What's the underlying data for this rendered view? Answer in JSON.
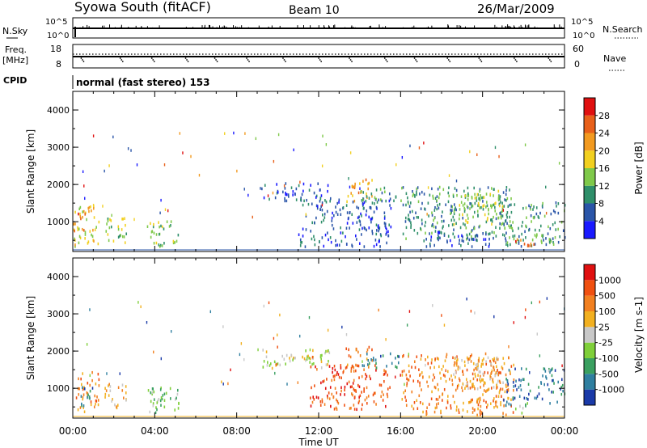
{
  "header": {
    "station": "Syowa South (fitACF)",
    "beam": "Beam 10",
    "date": "26/Mar/2009"
  },
  "panels": {
    "nsky": {
      "left_label": "N.Sky",
      "right_label": "N.Search",
      "ytick_top": "10^5",
      "ytick_bottom": "10^0",
      "rtick_top": "10^5",
      "rtick_bottom": "10^0"
    },
    "freq": {
      "left_label_1": "Freq.",
      "left_label_2": "[MHz]",
      "right_label": "Nave",
      "ytick_top": "18",
      "ytick_bottom": "8",
      "rtick_top": "60",
      "rtick_bottom": "0"
    },
    "cpid": {
      "label": "CPID",
      "mode": "normal (fast stereo) 153"
    }
  },
  "chart_data": [
    {
      "type": "heatmap",
      "name": "power",
      "ylabel": "Slant Range [km]",
      "xlabel": "Time UT",
      "x_ticks": [
        "00:00",
        "04:00",
        "08:00",
        "12:00",
        "16:00",
        "20:00",
        "00:00"
      ],
      "y_ticks": [
        "1000",
        "2000",
        "3000",
        "4000"
      ],
      "ylim": [
        200,
        4500
      ],
      "xlim_hours": [
        0,
        24
      ],
      "colorbar": {
        "label": "Power [dB]",
        "ticks": [
          "4",
          "8",
          "12",
          "16",
          "20",
          "24",
          "28"
        ],
        "colors": [
          "#1a1aff",
          "#2a55a8",
          "#2f8f6a",
          "#7fc94a",
          "#f2d020",
          "#f29a20",
          "#e8601a",
          "#e01010"
        ]
      },
      "blobs": [
        {
          "t0": 0.0,
          "t1": 1.3,
          "r0": 300,
          "r1": 1400,
          "level": 4
        },
        {
          "t0": 0.0,
          "t1": 0.8,
          "r0": 700,
          "r1": 1200,
          "level": 6
        },
        {
          "t0": 1.5,
          "t1": 2.6,
          "r0": 400,
          "r1": 1100,
          "level": 3
        },
        {
          "t0": 3.6,
          "t1": 5.2,
          "r0": 300,
          "r1": 1000,
          "level": 3
        },
        {
          "t0": 9.2,
          "t1": 12.5,
          "r0": 1500,
          "r1": 2000,
          "level": 1
        },
        {
          "t0": 11.0,
          "t1": 15.5,
          "r0": 300,
          "r1": 1600,
          "level": 1
        },
        {
          "t0": 13.3,
          "t1": 14.6,
          "r0": 1500,
          "r1": 2100,
          "level": 5
        },
        {
          "t0": 14.0,
          "t1": 16.0,
          "r0": 1500,
          "r1": 1900,
          "level": 2
        },
        {
          "t0": 16.0,
          "t1": 21.5,
          "r0": 500,
          "r1": 1900,
          "level": 2
        },
        {
          "t0": 18.5,
          "t1": 21.0,
          "r0": 900,
          "r1": 1800,
          "level": 3
        },
        {
          "t0": 17.0,
          "t1": 20.5,
          "r0": 300,
          "r1": 700,
          "level": 1
        },
        {
          "t0": 21.0,
          "t1": 24.0,
          "r0": 300,
          "r1": 1500,
          "level": 2
        },
        {
          "t0": 21.5,
          "t1": 22.5,
          "r0": 300,
          "r1": 500,
          "level": 6
        }
      ]
    },
    {
      "type": "heatmap",
      "name": "velocity",
      "ylabel": "Slant Range [km]",
      "xlabel": "Time UT",
      "x_ticks": [
        "00:00",
        "04:00",
        "08:00",
        "12:00",
        "16:00",
        "20:00",
        "00:00"
      ],
      "y_ticks": [
        "1000",
        "2000",
        "3000",
        "4000"
      ],
      "ylim": [
        200,
        4500
      ],
      "xlim_hours": [
        0,
        24
      ],
      "colorbar": {
        "label": "Velocity [m s-1]",
        "ticks": [
          "1000",
          "500",
          "100",
          "25",
          "-25",
          "-100",
          "-500",
          "-1000"
        ],
        "colors": [
          "#1a3aa8",
          "#2f7fa0",
          "#3aa060",
          "#7fcf3a",
          "#c8c8c8",
          "#f2b020",
          "#f28020",
          "#f05010",
          "#e01010"
        ]
      },
      "blobs": [
        {
          "t0": 0.0,
          "t1": 1.3,
          "r0": 300,
          "r1": 1400,
          "level": 6
        },
        {
          "t0": 0.2,
          "t1": 1.0,
          "r0": 500,
          "r1": 1000,
          "level": 1
        },
        {
          "t0": 1.5,
          "t1": 2.6,
          "r0": 400,
          "r1": 1100,
          "level": 5
        },
        {
          "t0": 3.6,
          "t1": 5.2,
          "r0": 300,
          "r1": 1000,
          "level": 3
        },
        {
          "t0": 9.2,
          "t1": 12.5,
          "r0": 1500,
          "r1": 2000,
          "level": 4
        },
        {
          "t0": 11.5,
          "t1": 15.5,
          "r0": 400,
          "r1": 1600,
          "level": 7
        },
        {
          "t0": 13.3,
          "t1": 14.6,
          "r0": 1500,
          "r1": 2100,
          "level": 6
        },
        {
          "t0": 14.0,
          "t1": 16.0,
          "r0": 1500,
          "r1": 1900,
          "level": 1
        },
        {
          "t0": 16.0,
          "t1": 21.5,
          "r0": 500,
          "r1": 1900,
          "level": 6
        },
        {
          "t0": 18.5,
          "t1": 21.0,
          "r0": 900,
          "r1": 1800,
          "level": 5
        },
        {
          "t0": 16.5,
          "t1": 21.5,
          "r0": 250,
          "r1": 600,
          "level": 6
        },
        {
          "t0": 21.0,
          "t1": 24.0,
          "r0": 500,
          "r1": 1500,
          "level": 1
        },
        {
          "t0": 21.5,
          "t1": 22.5,
          "r0": 300,
          "r1": 600,
          "level": 3
        }
      ]
    }
  ]
}
